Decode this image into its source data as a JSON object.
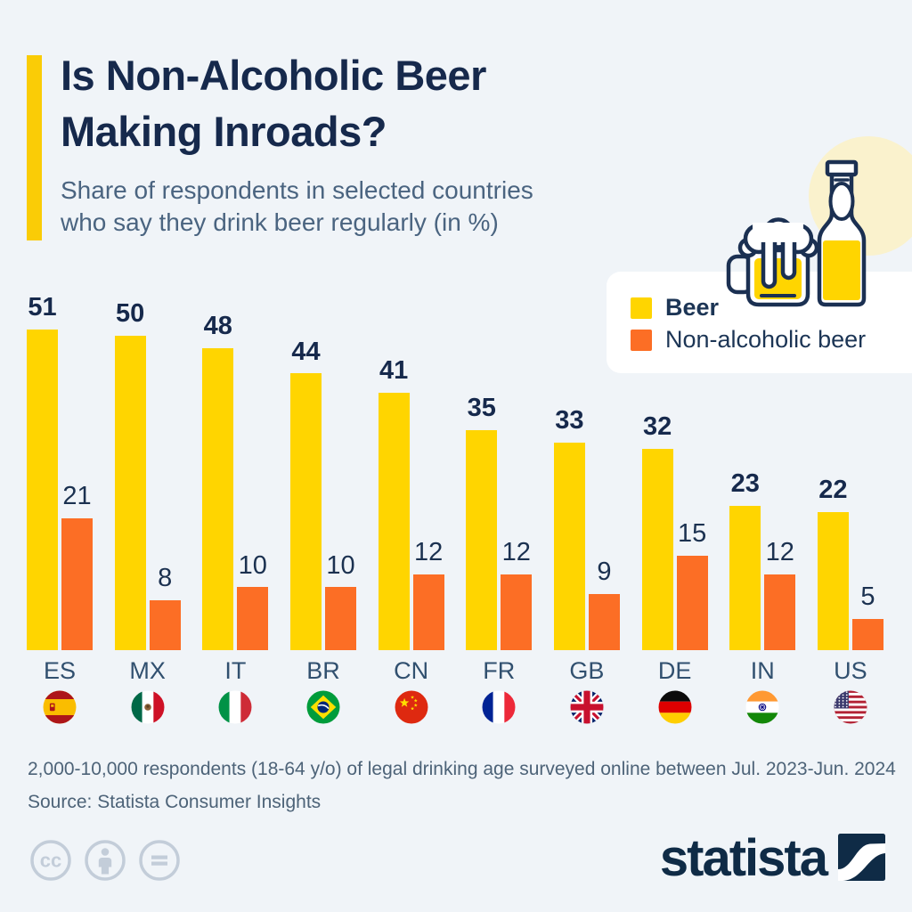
{
  "header": {
    "title_line1": "Is Non-Alcoholic Beer",
    "title_line2": "Making Inroads?",
    "subtitle_line1": "Share of respondents in selected countries",
    "subtitle_line2": "who say they drink beer regularly (in %)"
  },
  "legend": {
    "items": [
      {
        "label": "Beer",
        "color": "#FFD500"
      },
      {
        "label": "Non-alcoholic beer",
        "color": "#FC6E25"
      }
    ],
    "position": "top-right"
  },
  "chart_data": {
    "type": "bar",
    "title": "Is Non-Alcoholic Beer Making Inroads?",
    "categories": [
      "ES",
      "MX",
      "IT",
      "BR",
      "CN",
      "FR",
      "GB",
      "DE",
      "IN",
      "US"
    ],
    "series": [
      {
        "name": "Beer",
        "color": "#FFD500",
        "values": [
          51,
          50,
          48,
          44,
          41,
          35,
          33,
          32,
          23,
          22
        ]
      },
      {
        "name": "Non-alcoholic beer",
        "color": "#FC6E25",
        "values": [
          21,
          8,
          10,
          10,
          12,
          12,
          9,
          15,
          12,
          5
        ]
      }
    ],
    "unit": "%",
    "ylim": [
      0,
      51
    ],
    "grid": false,
    "legend_position": "top-right"
  },
  "footnote": {
    "note": "2,000-10,000 respondents (18-64 y/o) of legal drinking age surveyed online between Jul. 2023-Jun. 2024",
    "source": "Source: Statista Consumer Insights"
  },
  "branding": {
    "logo_text": "statista"
  },
  "license_icons": [
    "cc",
    "by",
    "nd"
  ],
  "colors": {
    "background": "#F0F4F8",
    "accent_bar": "#FACC06",
    "title": "#16294C",
    "subtitle": "#4A6480",
    "value_label": "#1B3150",
    "category_label": "#31506F",
    "footer_text": "#4D6378",
    "license_gray": "#C3CDD9",
    "logo_navy": "#0F2B46",
    "highlight_circle": "#FAF2CD"
  }
}
